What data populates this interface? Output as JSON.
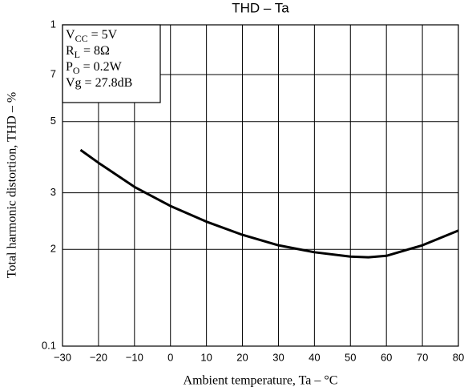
{
  "chart_data": {
    "type": "line",
    "title": "THD  –  Ta",
    "x_label": "Ambient temperature, Ta  –  °C",
    "y_label": "Total harmonic distortion, THD  –  %",
    "annotations": [
      [
        "V",
        "CC",
        " = 5V"
      ],
      [
        "R",
        "L",
        " = 8Ω"
      ],
      [
        "P",
        "O",
        " = 0.2W"
      ],
      [
        "Vg = 27.8dB"
      ]
    ],
    "x": [
      -25,
      -20,
      -10,
      0,
      10,
      20,
      30,
      40,
      50,
      55,
      60,
      70,
      80
    ],
    "series": [
      {
        "color": "#000000",
        "values": [
          0.408,
          0.372,
          0.313,
          0.273,
          0.244,
          0.222,
          0.206,
          0.196,
          0.19,
          0.189,
          0.191,
          0.206,
          0.229
        ]
      }
    ],
    "xlim": [
      -30,
      80
    ],
    "xticks": [
      {
        "value": -30,
        "label": "−30"
      },
      {
        "value": -20,
        "label": "−20"
      },
      {
        "value": -10,
        "label": "−10"
      },
      0,
      10,
      20,
      30,
      40,
      50,
      60,
      70,
      80
    ],
    "ylim": [
      0.1,
      1
    ],
    "yticks": [
      0.1,
      {
        "value": 0.2,
        "label": "2"
      },
      {
        "value": 0.3,
        "label": "3"
      },
      {
        "value": 0.5,
        "label": "5"
      },
      {
        "value": 0.7,
        "label": "7"
      },
      {
        "value": 1,
        "label": "1"
      }
    ],
    "y_log": true,
    "grid": true
  }
}
